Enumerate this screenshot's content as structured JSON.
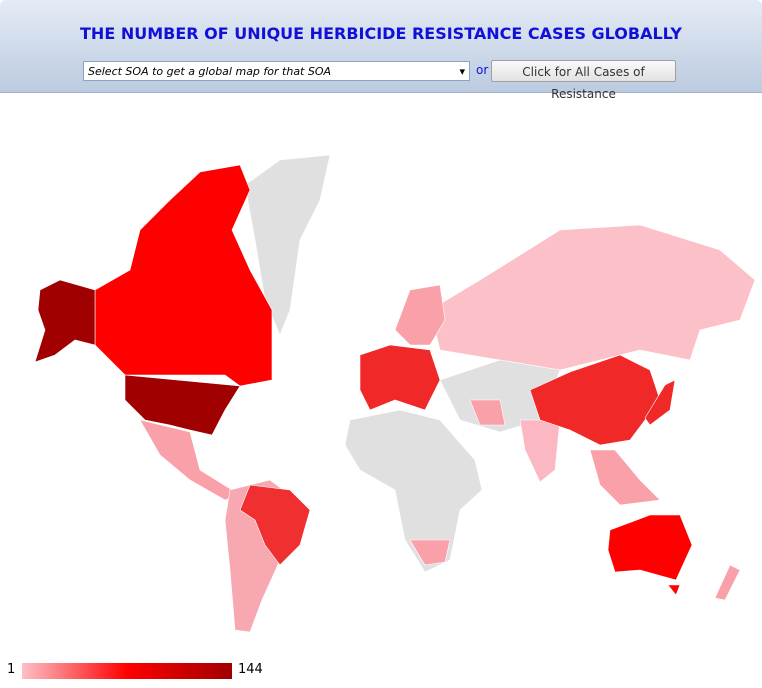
{
  "header": {
    "title": "THE NUMBER OF UNIQUE HERBICIDE RESISTANCE CASES GLOBALLY",
    "select_placeholder": "Select SOA to get a global map for that SOA",
    "or": "or",
    "button": "Click for All Cases of Resistance"
  },
  "legend": {
    "min": 1,
    "max": 144,
    "colors": [
      "#fcc0c8",
      "#ff0000",
      "#a00000"
    ]
  }
}
